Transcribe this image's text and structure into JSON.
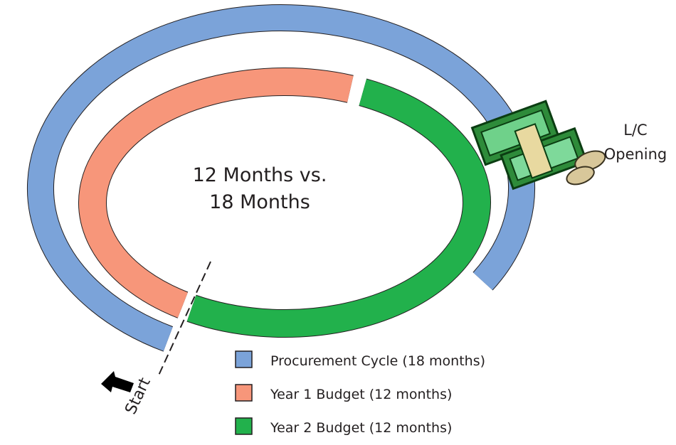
{
  "center_label": [
    "12 Months vs.",
    "18 Months"
  ],
  "annotation": [
    "L/C",
    "Opening"
  ],
  "start_label": "Start",
  "legend": [
    {
      "label": "Procurement Cycle (18 months)",
      "color": "#7ba3d9"
    },
    {
      "label": "Year 1 Budget (12 months)",
      "color": "#f7967a"
    },
    {
      "label": "Year 2 Budget (12 months)",
      "color": "#22b14c"
    }
  ]
}
